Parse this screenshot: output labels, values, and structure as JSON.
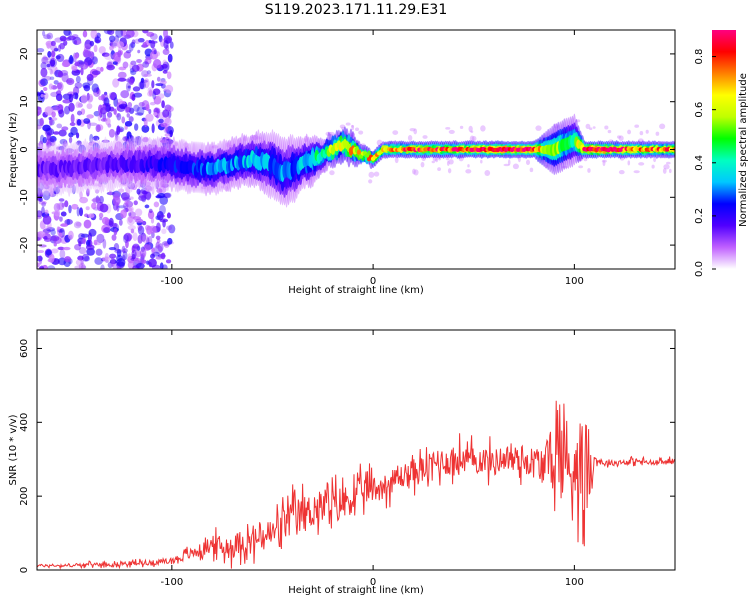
{
  "title": "S119.2023.171.11.29.E31",
  "chart_data": [
    {
      "type": "heatmap",
      "xlabel": "Height of straight line (km)",
      "ylabel": "Frequency (Hz)",
      "xlim": [
        -167,
        150
      ],
      "ylim": [
        -25,
        25
      ],
      "x_ticks": [
        -100,
        0,
        100
      ],
      "y_ticks": [
        -20,
        -10,
        0,
        10,
        20
      ],
      "grid": false,
      "ridge": {
        "x": [
          -165,
          -150,
          -130,
          -110,
          -100,
          -90,
          -80,
          -70,
          -60,
          -50,
          -45,
          -40,
          -35,
          -30,
          -25,
          -20,
          -15,
          -10,
          -5,
          0,
          5,
          10,
          20,
          30,
          40,
          50,
          60,
          70,
          80,
          85,
          90,
          95,
          100,
          105,
          110,
          120,
          130,
          140,
          150
        ],
        "y": [
          -4,
          -4,
          -3,
          -3,
          -3,
          -4,
          -4,
          -3,
          -2,
          -3,
          -5,
          -4,
          -3,
          -2,
          -1,
          0,
          1,
          0,
          -1,
          -2,
          0,
          0,
          0,
          0,
          0,
          0,
          0,
          0,
          0,
          0,
          0,
          1,
          2,
          0,
          0,
          0,
          0,
          0,
          0
        ],
        "half_width": [
          3,
          3,
          3,
          3,
          3,
          3,
          3,
          3,
          3,
          4,
          4,
          4,
          3,
          3,
          2,
          2,
          2,
          2,
          1,
          1,
          1,
          1,
          1,
          1,
          1,
          1,
          1,
          1,
          1,
          2,
          3,
          3,
          3,
          1,
          1,
          1,
          1,
          1,
          1
        ],
        "amplitude": [
          0.15,
          0.15,
          0.15,
          0.2,
          0.25,
          0.25,
          0.3,
          0.3,
          0.35,
          0.3,
          0.3,
          0.3,
          0.35,
          0.4,
          0.45,
          0.6,
          0.7,
          0.7,
          0.65,
          0.7,
          0.75,
          0.75,
          0.8,
          0.8,
          0.8,
          0.85,
          0.9,
          0.9,
          0.85,
          0.6,
          0.55,
          0.5,
          0.4,
          0.9,
          0.95,
          0.85,
          0.8,
          0.8,
          0.75
        ]
      },
      "colorbar": {
        "label": "Normalized spectral amplitude",
        "range": [
          0,
          0.9
        ],
        "ticks": [
          0.0,
          0.2,
          0.4,
          0.6,
          0.8
        ],
        "colors": [
          "#ffffff",
          "#c060ff",
          "#5000ff",
          "#0000ff",
          "#00c8ff",
          "#00ffc0",
          "#00ff00",
          "#c0ff00",
          "#ffff00",
          "#ff8000",
          "#ff0000",
          "#ff0080"
        ]
      }
    },
    {
      "type": "line",
      "xlabel": "Height of straight line (km)",
      "ylabel": "SNR (10 * v/v)",
      "xlim": [
        -167,
        150
      ],
      "ylim": [
        0,
        650
      ],
      "x_ticks": [
        -100,
        0,
        100
      ],
      "y_ticks": [
        0,
        200,
        400,
        600
      ],
      "grid": false,
      "color": "#ee3333",
      "series": [
        {
          "x": [
            -167,
            -150,
            -140,
            -130,
            -120,
            -110,
            -100,
            -95,
            -90,
            -85,
            -80,
            -75,
            -70,
            -65,
            -60,
            -55,
            -50,
            -45,
            -40,
            -35,
            -30,
            -25,
            -20,
            -15,
            -10,
            -5,
            0,
            5,
            10,
            15,
            20,
            25,
            30,
            35,
            40,
            45,
            50,
            55,
            60,
            65,
            70,
            75,
            80,
            85,
            88,
            90,
            92,
            95,
            97,
            100,
            103,
            105,
            107,
            110,
            115,
            120,
            130,
            140,
            150
          ],
          "y": [
            12,
            12,
            15,
            15,
            18,
            20,
            25,
            35,
            45,
            55,
            70,
            60,
            60,
            80,
            75,
            90,
            100,
            120,
            140,
            150,
            160,
            170,
            170,
            185,
            195,
            215,
            220,
            225,
            240,
            255,
            265,
            270,
            285,
            295,
            290,
            300,
            295,
            300,
            290,
            305,
            300,
            300,
            290,
            280,
            300,
            320,
            300,
            350,
            250,
            300,
            300,
            260,
            280,
            300,
            290,
            290,
            295,
            290,
            295
          ],
          "spread": [
            6,
            6,
            8,
            8,
            10,
            10,
            15,
            20,
            25,
            30,
            40,
            45,
            50,
            55,
            60,
            65,
            70,
            75,
            80,
            85,
            80,
            80,
            80,
            75,
            70,
            65,
            60,
            55,
            55,
            55,
            60,
            60,
            60,
            60,
            65,
            65,
            60,
            60,
            60,
            60,
            60,
            65,
            70,
            80,
            120,
            180,
            200,
            250,
            200,
            180,
            200,
            220,
            200,
            15,
            12,
            12,
            12,
            12,
            12
          ]
        }
      ]
    }
  ]
}
